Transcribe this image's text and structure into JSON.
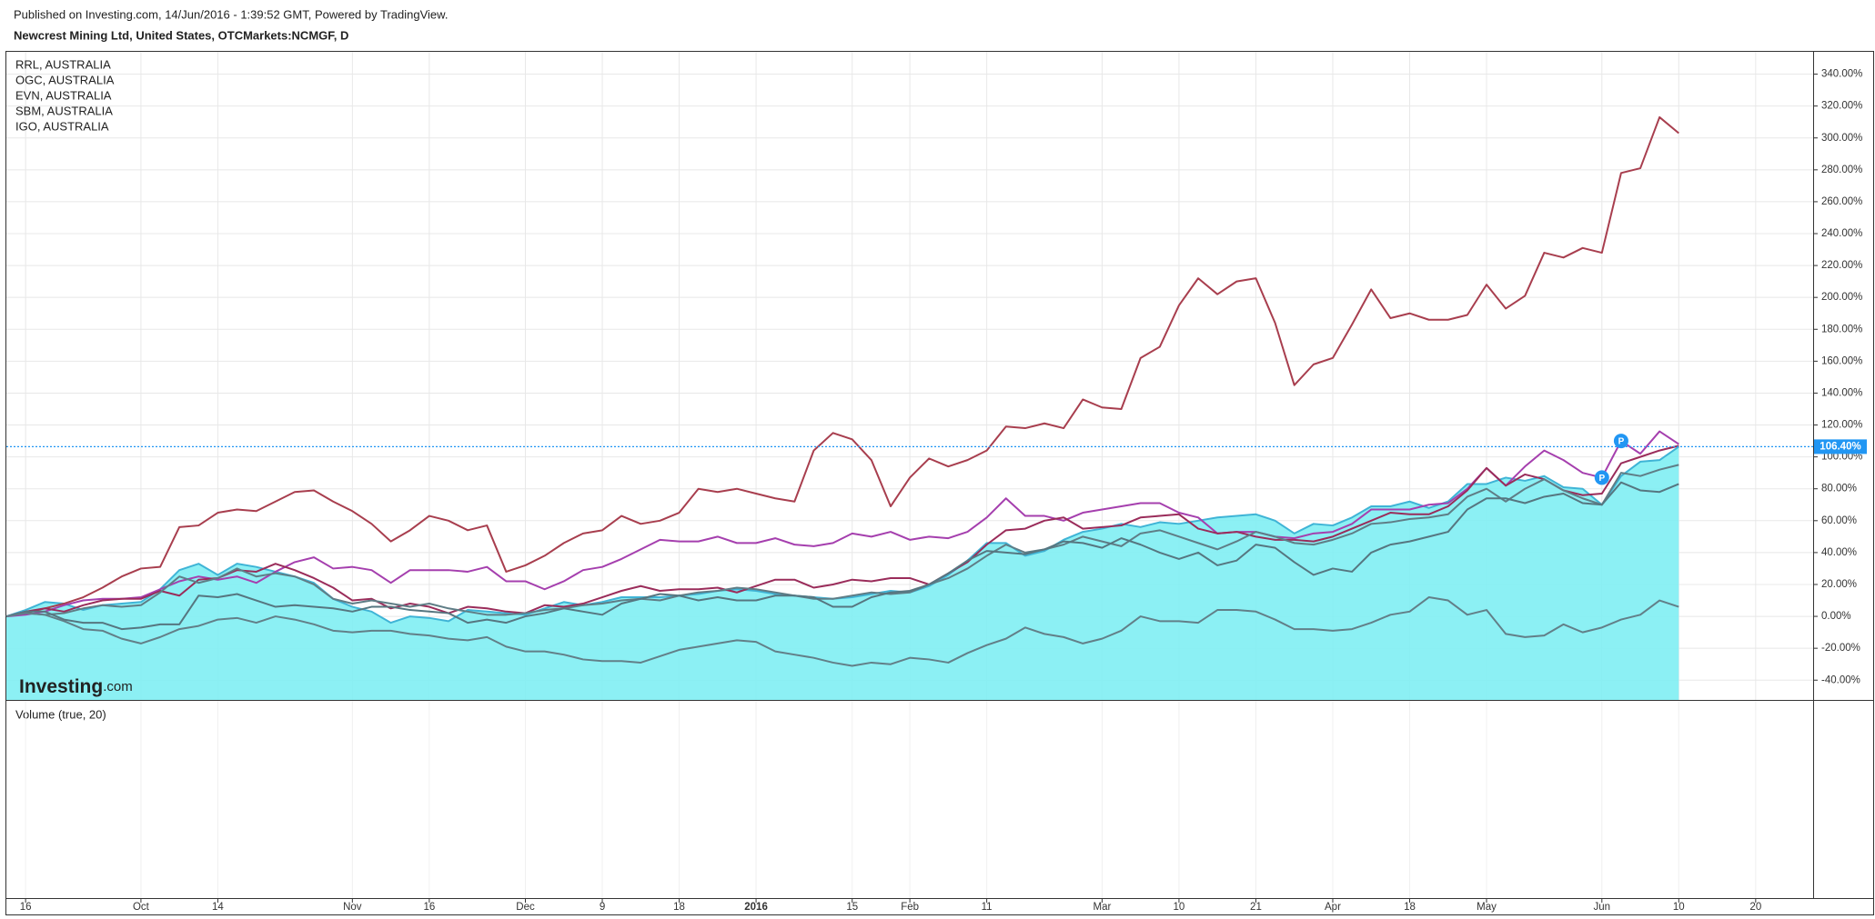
{
  "header": {
    "published": "Published on Investing.com, 14/Jun/2016 - 1:39:52 GMT, Powered by TradingView.",
    "symbol": "Newcrest Mining Ltd, United States, OTCMarkets:NCMGF, D"
  },
  "watermark": [
    "Investing",
    ".com"
  ],
  "volume_pane": {
    "label": "Volume (true, 20)"
  },
  "chart_data": {
    "type": "line",
    "categories": [
      null,
      "16",
      null,
      null,
      null,
      null,
      null,
      "Oct",
      null,
      null,
      null,
      "14",
      null,
      null,
      null,
      null,
      null,
      null,
      "Nov",
      null,
      null,
      null,
      "16",
      null,
      null,
      null,
      null,
      "Dec",
      null,
      null,
      null,
      "9",
      null,
      null,
      null,
      "18",
      null,
      null,
      null,
      "2016",
      null,
      null,
      null,
      null,
      "15",
      null,
      null,
      "Feb",
      null,
      null,
      null,
      "11",
      null,
      null,
      null,
      null,
      null,
      "Mar",
      null,
      null,
      null,
      "10",
      null,
      null,
      null,
      "21",
      null,
      null,
      null,
      "Apr",
      null,
      null,
      null,
      "18",
      null,
      null,
      null,
      "May",
      null,
      null,
      null,
      null,
      null,
      "Jun",
      null,
      null,
      null,
      "10",
      null,
      null,
      null,
      "20",
      null,
      null
    ],
    "series": [
      {
        "color": "#3fb4d6",
        "fill": "#80eef3",
        "values": [
          0,
          4,
          9,
          8,
          4,
          7,
          8,
          9,
          17,
          29,
          33,
          26,
          33,
          31,
          28,
          25,
          21,
          11,
          6,
          3,
          -4,
          0,
          -1,
          -3,
          4,
          3,
          2,
          1,
          5,
          9,
          7,
          9,
          12,
          12,
          12,
          13,
          14,
          16,
          17,
          16,
          14,
          13,
          12,
          11,
          12,
          14,
          16,
          15,
          19,
          26,
          35,
          46,
          46,
          38,
          41,
          48,
          53,
          55,
          58,
          56,
          59,
          58,
          60,
          62,
          63,
          64,
          60,
          52,
          58,
          57,
          62,
          69,
          69,
          72,
          68,
          72,
          83,
          83,
          87,
          85,
          88,
          81,
          80,
          70,
          88,
          97,
          98,
          106.4,
          null,
          null,
          null,
          null,
          null,
          null
        ]
      },
      {
        "name": "RRL, AUSTRALIA",
        "color": "#a83e4e",
        "values": [
          0,
          2,
          5,
          8,
          12,
          18,
          25,
          30,
          31,
          56,
          57,
          65,
          67,
          66,
          72,
          78,
          79,
          72,
          66,
          58,
          47,
          54,
          63,
          60,
          54,
          57,
          28,
          32,
          38,
          46,
          52,
          54,
          63,
          58,
          60,
          65,
          80,
          78,
          80,
          77,
          74,
          72,
          104,
          115,
          111,
          98,
          69,
          87,
          99,
          94,
          98,
          104,
          119,
          118,
          121,
          118,
          136,
          131,
          130,
          162,
          169,
          195,
          212,
          202,
          210,
          212,
          184,
          145,
          158,
          162,
          183,
          205,
          187,
          190,
          186,
          186,
          189,
          208,
          193,
          201,
          228,
          225,
          231,
          228,
          278,
          281,
          313,
          303,
          null,
          null,
          null,
          null,
          null,
          null
        ]
      },
      {
        "name": "OGC, AUSTRALIA",
        "color": "#a53fae",
        "markers": [
          {
            "index": 83,
            "text": "P"
          },
          {
            "index": 84,
            "text": "P"
          }
        ],
        "values": [
          0,
          1,
          3,
          7,
          10,
          11,
          11,
          12,
          17,
          22,
          25,
          23,
          25,
          21,
          28,
          34,
          37,
          30,
          31,
          29,
          21,
          29,
          29,
          29,
          28,
          31,
          22,
          22,
          17,
          22,
          29,
          31,
          36,
          42,
          48,
          47,
          47,
          50,
          46,
          46,
          49,
          45,
          44,
          46,
          52,
          50,
          53,
          48,
          50,
          49,
          53,
          62,
          74,
          63,
          63,
          60,
          65,
          67,
          69,
          71,
          71,
          65,
          62,
          52,
          53,
          53,
          50,
          49,
          52,
          53,
          58,
          67,
          67,
          67,
          70,
          71,
          80,
          93,
          82,
          94,
          104,
          98,
          90,
          87,
          110,
          102,
          116,
          108,
          null,
          null,
          null,
          null,
          null,
          null
        ]
      },
      {
        "name": "EVN, AUSTRALIA",
        "color": "#9a2c5a",
        "values": [
          0,
          3,
          5,
          3,
          7,
          10,
          11,
          11,
          16,
          13,
          23,
          24,
          29,
          28,
          33,
          29,
          24,
          18,
          10,
          11,
          5,
          8,
          6,
          2,
          6,
          5,
          3,
          2,
          7,
          6,
          8,
          12,
          16,
          19,
          16,
          17,
          17,
          18,
          15,
          19,
          23,
          23,
          18,
          20,
          23,
          22,
          24,
          24,
          20,
          27,
          34,
          45,
          54,
          55,
          60,
          62,
          55,
          56,
          57,
          62,
          63,
          64,
          55,
          52,
          53,
          50,
          48,
          48,
          47,
          50,
          55,
          60,
          65,
          64,
          64,
          69,
          79,
          93,
          82,
          89,
          86,
          79,
          76,
          77,
          96,
          100,
          104,
          107,
          null,
          null,
          null,
          null,
          null,
          null
        ]
      },
      {
        "name": "SBM, AUSTRALIA",
        "color": "#5f7d86",
        "values": [
          0,
          2,
          1,
          2,
          5,
          7,
          6,
          7,
          15,
          25,
          21,
          24,
          30,
          25,
          27,
          25,
          20,
          11,
          8,
          10,
          8,
          6,
          8,
          5,
          3,
          1,
          1,
          2,
          4,
          5,
          7,
          8,
          10,
          11,
          10,
          13,
          15,
          16,
          18,
          17,
          15,
          13,
          11,
          11,
          13,
          15,
          14,
          15,
          20,
          24,
          30,
          38,
          45,
          40,
          42,
          45,
          50,
          47,
          44,
          52,
          54,
          50,
          46,
          42,
          47,
          53,
          50,
          46,
          45,
          48,
          52,
          58,
          59,
          61,
          62,
          64,
          75,
          80,
          72,
          80,
          86,
          79,
          74,
          70,
          90,
          88,
          92,
          95,
          null,
          null,
          null,
          null,
          null,
          null
        ]
      },
      {
        "name": "IGO, AUSTRALIA",
        "color": "#567680",
        "values": [
          0,
          3,
          3,
          -2,
          -4,
          -4,
          -8,
          -7,
          -5,
          -5,
          13,
          12,
          14,
          10,
          6,
          7,
          6,
          5,
          3,
          6,
          6,
          4,
          3,
          2,
          -4,
          -2,
          -4,
          0,
          2,
          5,
          3,
          1,
          8,
          11,
          14,
          13,
          10,
          12,
          10,
          10,
          13,
          13,
          12,
          6,
          6,
          12,
          15,
          16,
          20,
          27,
          35,
          41,
          40,
          39,
          42,
          47,
          46,
          43,
          49,
          45,
          40,
          36,
          40,
          32,
          35,
          45,
          43,
          34,
          26,
          30,
          28,
          40,
          45,
          47,
          50,
          53,
          67,
          74,
          74,
          71,
          75,
          77,
          71,
          70,
          84,
          79,
          78,
          83,
          null,
          null,
          null,
          null,
          null,
          null
        ]
      },
      {
        "color": "#627f88",
        "values": [
          0,
          2,
          1,
          -3,
          -8,
          -9,
          -14,
          -17,
          -13,
          -8,
          -6,
          -2,
          -1,
          -4,
          0,
          -2,
          -5,
          -9,
          -10,
          -9,
          -9,
          -11,
          -12,
          -14,
          -15,
          -13,
          -19,
          -22,
          -22,
          -24,
          -27,
          -28,
          -28,
          -29,
          -25,
          -21,
          -19,
          -17,
          -15,
          -16,
          -22,
          -24,
          -26,
          -29,
          -31,
          -29,
          -30,
          -26,
          -27,
          -29,
          -23,
          -18,
          -14,
          -7,
          -11,
          -13,
          -17,
          -14,
          -9,
          0,
          -3,
          -3,
          -4,
          4,
          4,
          3,
          -2,
          -8,
          -8,
          -9,
          -8,
          -4,
          1,
          3,
          12,
          10,
          1,
          4,
          -11,
          -13,
          -12,
          -5,
          -10,
          -7,
          -2,
          1,
          10,
          6,
          null,
          null,
          null,
          null,
          null,
          null
        ]
      }
    ],
    "ylim": [
      -52.4,
      354
    ],
    "yticks": [
      {
        "value": -40,
        "label": "-40.00%"
      },
      {
        "value": -20,
        "label": "-20.00%"
      },
      {
        "value": 0,
        "label": "0.00%"
      },
      {
        "value": 20,
        "label": "20.00%"
      },
      {
        "value": 40,
        "label": "40.00%"
      },
      {
        "value": 60,
        "label": "60.00%"
      },
      {
        "value": 80,
        "label": "80.00%"
      },
      {
        "value": 100,
        "label": "100.00%"
      },
      {
        "value": 120,
        "label": "120.00%"
      },
      {
        "value": 140,
        "label": "140.00%"
      },
      {
        "value": 160,
        "label": "160.00%"
      },
      {
        "value": 180,
        "label": "180.00%"
      },
      {
        "value": 200,
        "label": "200.00%"
      },
      {
        "value": 220,
        "label": "220.00%"
      },
      {
        "value": 240,
        "label": "240.00%"
      },
      {
        "value": 260,
        "label": "260.00%"
      },
      {
        "value": 280,
        "label": "280.00%"
      },
      {
        "value": 300,
        "label": "300.00%"
      },
      {
        "value": 320,
        "label": "320.00%"
      },
      {
        "value": 340,
        "label": "340.00%"
      }
    ],
    "grid": true,
    "price_line": {
      "value": 106.4,
      "label": "106.40%",
      "color": "#2196f3"
    }
  }
}
